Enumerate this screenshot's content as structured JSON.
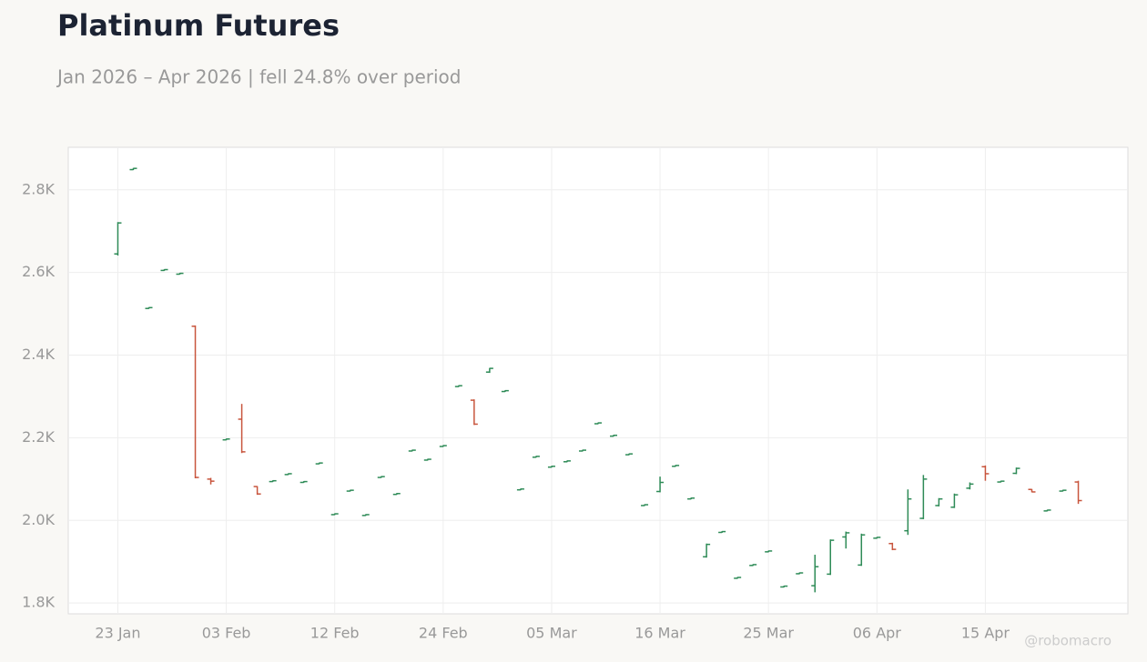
{
  "chart_data": {
    "type": "ohlc",
    "title": "Platinum Futures",
    "subtitle": "Jan 2026 – Apr 2026 | fell 24.8% over period",
    "watermark": "@robomacro",
    "categories": [
      "23 Jan",
      null,
      null,
      null,
      null,
      null,
      null,
      "03 Feb",
      null,
      null,
      null,
      null,
      null,
      null,
      "12 Feb",
      null,
      null,
      null,
      null,
      null,
      null,
      "24 Feb",
      null,
      null,
      null,
      null,
      null,
      null,
      "05 Mar",
      null,
      null,
      null,
      null,
      null,
      null,
      "16 Mar",
      null,
      null,
      null,
      null,
      null,
      null,
      "25 Mar",
      null,
      null,
      null,
      null,
      null,
      null,
      "06 Apr",
      null,
      null,
      null,
      null,
      null,
      null,
      "15 Apr",
      null,
      null,
      null,
      null,
      null,
      null
    ],
    "open": [
      2645,
      2849,
      2513,
      2605,
      2596,
      2470,
      2100,
      2195,
      2245,
      2082,
      2094,
      2111,
      2092,
      2137,
      2014,
      2071,
      2012,
      2104,
      2063,
      2168,
      2146,
      2179,
      2324,
      2291,
      2359,
      2312,
      2074,
      2153,
      2129,
      2142,
      2168,
      2234,
      2204,
      2159,
      2036,
      2070,
      2131,
      2052,
      1912,
      1971,
      1860,
      1891,
      1924,
      1839,
      1871,
      1842,
      1870,
      1960,
      1892,
      1957,
      1944,
      1975,
      2005,
      2036,
      2032,
      2078,
      2130,
      2093,
      2114,
      2075,
      2023,
      2071,
      2093
    ],
    "high": [
      2722,
      2853,
      2516,
      2608,
      2599,
      2472,
      2103,
      2198,
      2282,
      2083,
      2097,
      2114,
      2095,
      2140,
      2017,
      2074,
      2015,
      2107,
      2066,
      2171,
      2149,
      2182,
      2327,
      2293,
      2369,
      2315,
      2077,
      2156,
      2132,
      2145,
      2171,
      2237,
      2207,
      2162,
      2039,
      2106,
      2134,
      2055,
      1944,
      1974,
      1863,
      1894,
      1927,
      1842,
      1874,
      1917,
      1954,
      1973,
      1968,
      1960,
      1946,
      2075,
      2110,
      2054,
      2065,
      2092,
      2133,
      2096,
      2128,
      2076,
      2026,
      2074,
      2096
    ],
    "low": [
      2641,
      2848,
      2512,
      2604,
      2595,
      2102,
      2087,
      2194,
      2163,
      2062,
      2093,
      2110,
      2091,
      2136,
      2013,
      2070,
      2011,
      2103,
      2062,
      2167,
      2145,
      2178,
      2323,
      2231,
      2357,
      2311,
      2073,
      2152,
      2128,
      2141,
      2167,
      2233,
      2203,
      2158,
      2035,
      2068,
      2130,
      2051,
      1910,
      1970,
      1859,
      1890,
      1923,
      1838,
      1870,
      1826,
      1868,
      1932,
      1890,
      1956,
      1928,
      1965,
      2003,
      2034,
      2030,
      2075,
      2096,
      2092,
      2112,
      2068,
      2022,
      2070,
      2040
    ],
    "close": [
      2720,
      2852,
      2515,
      2607,
      2598,
      2104,
      2095,
      2197,
      2166,
      2064,
      2096,
      2113,
      2094,
      2139,
      2016,
      2073,
      2014,
      2106,
      2065,
      2170,
      2148,
      2181,
      2326,
      2233,
      2368,
      2314,
      2076,
      2155,
      2131,
      2144,
      2170,
      2236,
      2206,
      2161,
      2038,
      2092,
      2133,
      2054,
      1942,
      1973,
      1862,
      1893,
      1926,
      1841,
      1873,
      1888,
      1952,
      1970,
      1965,
      1959,
      1930,
      2052,
      2100,
      2052,
      2062,
      2088,
      2113,
      2095,
      2126,
      2069,
      2025,
      2073,
      2048
    ],
    "up_color": "#2e8b57",
    "down_color": "#c8553d",
    "ylim": [
      1774,
      2903
    ],
    "yticks": [
      {
        "value": 1800,
        "label": "1.8K"
      },
      {
        "value": 2000,
        "label": "2.0K"
      },
      {
        "value": 2200,
        "label": "2.2K"
      },
      {
        "value": 2400,
        "label": "2.4K"
      },
      {
        "value": 2600,
        "label": "2.6K"
      },
      {
        "value": 2800,
        "label": "2.8K"
      }
    ],
    "grid": true
  }
}
